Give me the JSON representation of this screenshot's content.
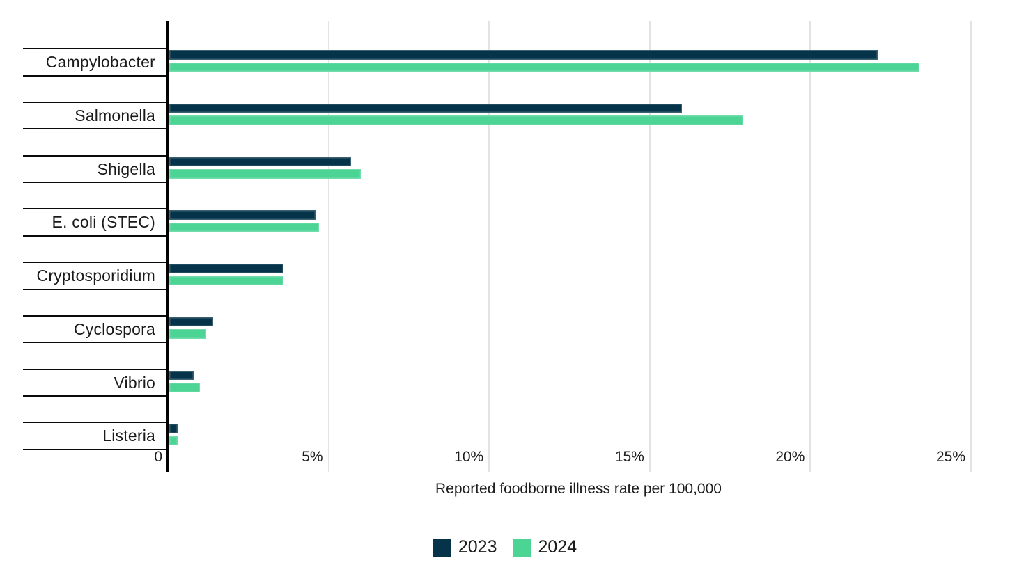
{
  "chart_data": {
    "type": "bar",
    "orientation": "horizontal",
    "title": "",
    "xlabel": "Reported foodborne illness rate per 100,000",
    "ylabel": "",
    "categories": [
      "Campylobacter",
      "Salmonella",
      "Shigella",
      "E. coli (STEC)",
      "Cryptosporidium",
      "Cyclospora",
      "Vibrio",
      "Listeria"
    ],
    "series": [
      {
        "name": "2023",
        "color": "#05344a",
        "values": [
          22.1,
          16.0,
          5.7,
          4.6,
          3.6,
          1.4,
          0.8,
          0.3
        ]
      },
      {
        "name": "2024",
        "color": "#4bd494",
        "values": [
          23.4,
          17.9,
          6.0,
          4.7,
          3.6,
          1.2,
          1.0,
          0.3
        ]
      }
    ],
    "x_ticks": [
      {
        "label": "0",
        "value": 0
      },
      {
        "label": "5%",
        "value": 5
      },
      {
        "label": "10%",
        "value": 10
      },
      {
        "label": "15%",
        "value": 15
      },
      {
        "label": "20%",
        "value": 20
      },
      {
        "label": "25%",
        "value": 25
      }
    ],
    "xlim": [
      0,
      25.6
    ],
    "grid": "vertical",
    "legend_position": "bottom",
    "colors": {
      "gridline": "#e3e3e3",
      "axis": "#000000",
      "text": "#1c1c1c"
    }
  }
}
